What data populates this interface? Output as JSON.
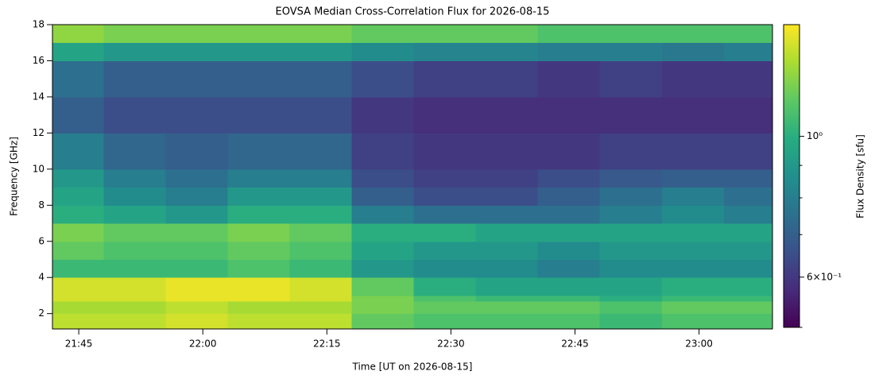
{
  "chart_data": {
    "type": "heatmap",
    "title": "EOVSA Median Cross-Correlation Flux for 2026-08-15",
    "x_label": "Time [UT on 2026-08-15]",
    "y_label": "Frequency [GHz]",
    "xlim": [
      21.697,
      23.148
    ],
    "ylim": [
      1.15,
      18
    ],
    "xticks": [
      {
        "value": 21.75,
        "label": "21:45"
      },
      {
        "value": 22.0,
        "label": "22:00"
      },
      {
        "value": 22.25,
        "label": "22:15"
      },
      {
        "value": 22.5,
        "label": "22:30"
      },
      {
        "value": 22.75,
        "label": "22:45"
      },
      {
        "value": 23.0,
        "label": "23:00"
      }
    ],
    "yticks": [
      2,
      4,
      6,
      8,
      10,
      12,
      14,
      16,
      18
    ],
    "xbins": [
      21.697,
      21.8,
      21.925,
      22.05,
      22.175,
      22.3,
      22.425,
      22.55,
      22.675,
      22.8,
      22.925,
      23.05,
      23.148
    ],
    "ybins": [
      1.15,
      2,
      2.7,
      3,
      4,
      5,
      6,
      7,
      8,
      9,
      10,
      12,
      14,
      16,
      17,
      18
    ],
    "z": [
      [
        1.35,
        1.35,
        1.4,
        1.35,
        1.35,
        1.15,
        1.1,
        1.1,
        1.1,
        1.05,
        1.1,
        1.1
      ],
      [
        1.3,
        1.3,
        1.35,
        1.3,
        1.3,
        1.2,
        1.15,
        1.15,
        1.15,
        1.1,
        1.15,
        1.15
      ],
      [
        1.4,
        1.4,
        1.45,
        1.45,
        1.4,
        1.2,
        1.1,
        1.05,
        1.05,
        1.0,
        1.05,
        1.05
      ],
      [
        1.4,
        1.4,
        1.45,
        1.45,
        1.4,
        1.15,
        1.0,
        0.95,
        0.95,
        0.95,
        1.0,
        1.0
      ],
      [
        1.05,
        1.05,
        1.05,
        1.1,
        1.05,
        0.9,
        0.85,
        0.85,
        0.8,
        0.85,
        0.85,
        0.85
      ],
      [
        1.15,
        1.1,
        1.1,
        1.15,
        1.1,
        0.95,
        0.9,
        0.9,
        0.85,
        0.9,
        0.9,
        0.9
      ],
      [
        1.2,
        1.15,
        1.15,
        1.2,
        1.15,
        1.0,
        1.0,
        0.95,
        0.95,
        0.95,
        0.95,
        0.95
      ],
      [
        1.0,
        0.95,
        0.9,
        1.0,
        1.0,
        0.8,
        0.75,
        0.75,
        0.75,
        0.8,
        0.85,
        0.8
      ],
      [
        0.95,
        0.85,
        0.8,
        0.9,
        0.9,
        0.7,
        0.65,
        0.65,
        0.7,
        0.75,
        0.8,
        0.75
      ],
      [
        0.9,
        0.8,
        0.75,
        0.8,
        0.8,
        0.65,
        0.62,
        0.62,
        0.65,
        0.68,
        0.7,
        0.7
      ],
      [
        0.8,
        0.72,
        0.7,
        0.72,
        0.72,
        0.62,
        0.6,
        0.6,
        0.6,
        0.62,
        0.62,
        0.62
      ],
      [
        0.7,
        0.65,
        0.65,
        0.65,
        0.65,
        0.6,
        0.58,
        0.58,
        0.58,
        0.58,
        0.58,
        0.58
      ],
      [
        0.75,
        0.7,
        0.7,
        0.7,
        0.7,
        0.65,
        0.62,
        0.62,
        0.6,
        0.62,
        0.6,
        0.6
      ],
      [
        0.95,
        0.9,
        0.9,
        0.9,
        0.9,
        0.85,
        0.82,
        0.82,
        0.8,
        0.8,
        0.78,
        0.8
      ],
      [
        1.25,
        1.2,
        1.2,
        1.2,
        1.2,
        1.15,
        1.15,
        1.15,
        1.1,
        1.1,
        1.1,
        1.1
      ]
    ],
    "colormap": "viridis",
    "colorbar": {
      "label": "Flux Density [sfu]",
      "lim": [
        0.5,
        1.5
      ],
      "scale": "log",
      "ticks": [
        {
          "value": 0.6,
          "label": "6×10⁻¹"
        },
        {
          "value": 1,
          "label": "10⁰"
        }
      ],
      "minor_ticks": [
        0.5,
        0.7,
        0.8,
        0.9
      ]
    }
  }
}
